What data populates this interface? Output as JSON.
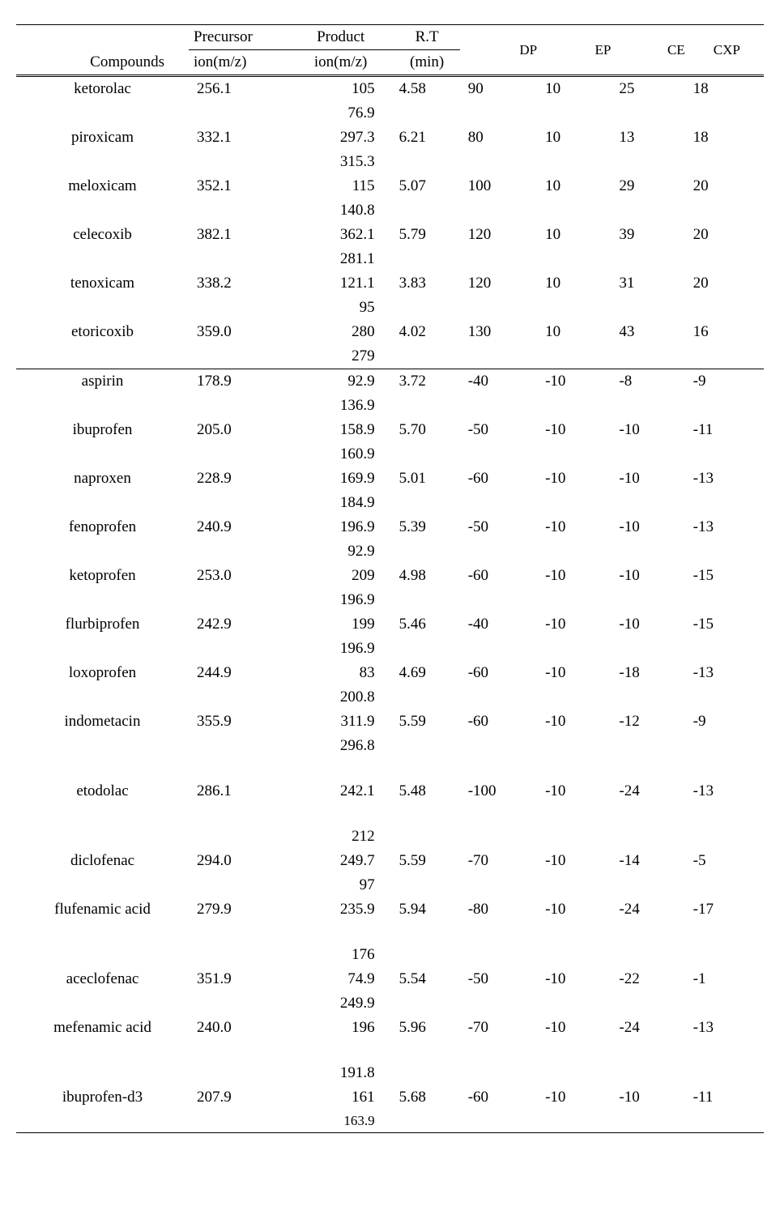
{
  "table": {
    "columns": {
      "compounds": "Compounds",
      "precursor_l1": "Precursor",
      "precursor_l2": "ion(m/z)",
      "product_l1": "Product",
      "product_l2": "ion(m/z)",
      "rt_l1": "R.T",
      "rt_l2": "(min)",
      "dp": "DP",
      "ep": "EP",
      "ce": "CE",
      "cxp": "CXP"
    },
    "col_widths_pct": [
      21,
      12,
      13,
      8,
      10,
      9,
      9,
      9
    ],
    "font_family": "Times New Roman",
    "font_size_pt": 19,
    "header_small_pt": 17,
    "border_color": "#000000",
    "background_color": "#ffffff",
    "text_color": "#000000",
    "section1": [
      {
        "compound": "ketorolac",
        "precursor": "256.1",
        "product1": "105",
        "product2": "76.9",
        "rt": "4.58",
        "dp": "90",
        "ep": "10",
        "ce": "25",
        "cxp": "18"
      },
      {
        "compound": "piroxicam",
        "precursor": "332.1",
        "product1": "297.3",
        "product2": "315.3",
        "rt": "6.21",
        "dp": "80",
        "ep": "10",
        "ce": "13",
        "cxp": "18"
      },
      {
        "compound": "meloxicam",
        "precursor": "352.1",
        "product1": "115",
        "product2": "140.8",
        "rt": "5.07",
        "dp": "100",
        "ep": "10",
        "ce": "29",
        "cxp": "20"
      },
      {
        "compound": "celecoxib",
        "precursor": "382.1",
        "product1": "362.1",
        "product2": "281.1",
        "rt": "5.79",
        "dp": "120",
        "ep": "10",
        "ce": "39",
        "cxp": "20"
      },
      {
        "compound": "tenoxicam",
        "precursor": "338.2",
        "product1": "121.1",
        "product2": "95",
        "rt": "3.83",
        "dp": "120",
        "ep": "10",
        "ce": "31",
        "cxp": "20"
      },
      {
        "compound": "etoricoxib",
        "precursor": "359.0",
        "product1": "280",
        "product2": "279",
        "rt": "4.02",
        "dp": "130",
        "ep": "10",
        "ce": "43",
        "cxp": "16"
      }
    ],
    "section2": [
      {
        "compound": "aspirin",
        "precursor": "178.9",
        "product1": "92.9",
        "product2": "136.9",
        "rt": "3.72",
        "dp": "-40",
        "ep": "-10",
        "ce": "-8",
        "cxp": "-9"
      },
      {
        "compound": "ibuprofen",
        "precursor": "205.0",
        "product1": "158.9",
        "product2": "160.9",
        "rt": "5.70",
        "dp": "-50",
        "ep": "-10",
        "ce": "-10",
        "cxp": "-11"
      },
      {
        "compound": "naproxen",
        "precursor": "228.9",
        "product1": "169.9",
        "product2": "184.9",
        "rt": "5.01",
        "dp": "-60",
        "ep": "-10",
        "ce": "-10",
        "cxp": "-13"
      },
      {
        "compound": "fenoprofen",
        "precursor": "240.9",
        "product1": "196.9",
        "product2": "92.9",
        "rt": "5.39",
        "dp": "-50",
        "ep": "-10",
        "ce": "-10",
        "cxp": "-13"
      },
      {
        "compound": "ketoprofen",
        "precursor": "253.0",
        "product1": "209",
        "product2": "196.9",
        "rt": "4.98",
        "dp": "-60",
        "ep": "-10",
        "ce": "-10",
        "cxp": "-15"
      },
      {
        "compound": "flurbiprofen",
        "precursor": "242.9",
        "product1": "199",
        "product2": "196.9",
        "rt": "5.46",
        "dp": "-40",
        "ep": "-10",
        "ce": "-10",
        "cxp": "-15"
      },
      {
        "compound": "loxoprofen",
        "precursor": "244.9",
        "product1": "83",
        "product2": "200.8",
        "rt": "4.69",
        "dp": "-60",
        "ep": "-10",
        "ce": "-18",
        "cxp": "-13"
      },
      {
        "compound": "indometacin",
        "precursor": "355.9",
        "product1": "311.9",
        "product2": "296.8",
        "rt": "5.59",
        "dp": "-60",
        "ep": "-10",
        "ce": "-12",
        "cxp": "-9",
        "pad_after": true
      },
      {
        "compound": "etodolac",
        "precursor": "286.1",
        "product1": "242.1",
        "product2": "212",
        "rt": "5.48",
        "dp": "-100",
        "ep": "-10",
        "ce": "-24",
        "cxp": "-13",
        "pad_before": true,
        "pad_mid": true
      },
      {
        "compound": "diclofenac",
        "precursor": "294.0",
        "product1": "249.7",
        "product2": "97",
        "rt": "5.59",
        "dp": "-70",
        "ep": "-10",
        "ce": "-14",
        "cxp": "-5"
      },
      {
        "compound": "flufenamic acid",
        "precursor": "279.9",
        "product1": "235.9",
        "product2": "176",
        "rt": "5.94",
        "dp": "-80",
        "ep": "-10",
        "ce": "-24",
        "cxp": "-17",
        "pad_mid": true
      },
      {
        "compound": "aceclofenac",
        "precursor": "351.9",
        "product1": "74.9",
        "product2": "249.9",
        "rt": "5.54",
        "dp": "-50",
        "ep": "-10",
        "ce": "-22",
        "cxp": "-1"
      },
      {
        "compound": "mefenamic acid",
        "precursor": "240.0",
        "product1": "196",
        "product2": "191.8",
        "rt": "5.96",
        "dp": "-70",
        "ep": "-10",
        "ce": "-24",
        "cxp": "-13",
        "pad_mid": true
      },
      {
        "compound": "ibuprofen-d3",
        "precursor": "207.9",
        "product1": "161",
        "product2": "163.9",
        "rt": "5.68",
        "dp": "-60",
        "ep": "-10",
        "ce": "-10",
        "cxp": "-11",
        "p2_small": true
      }
    ]
  }
}
